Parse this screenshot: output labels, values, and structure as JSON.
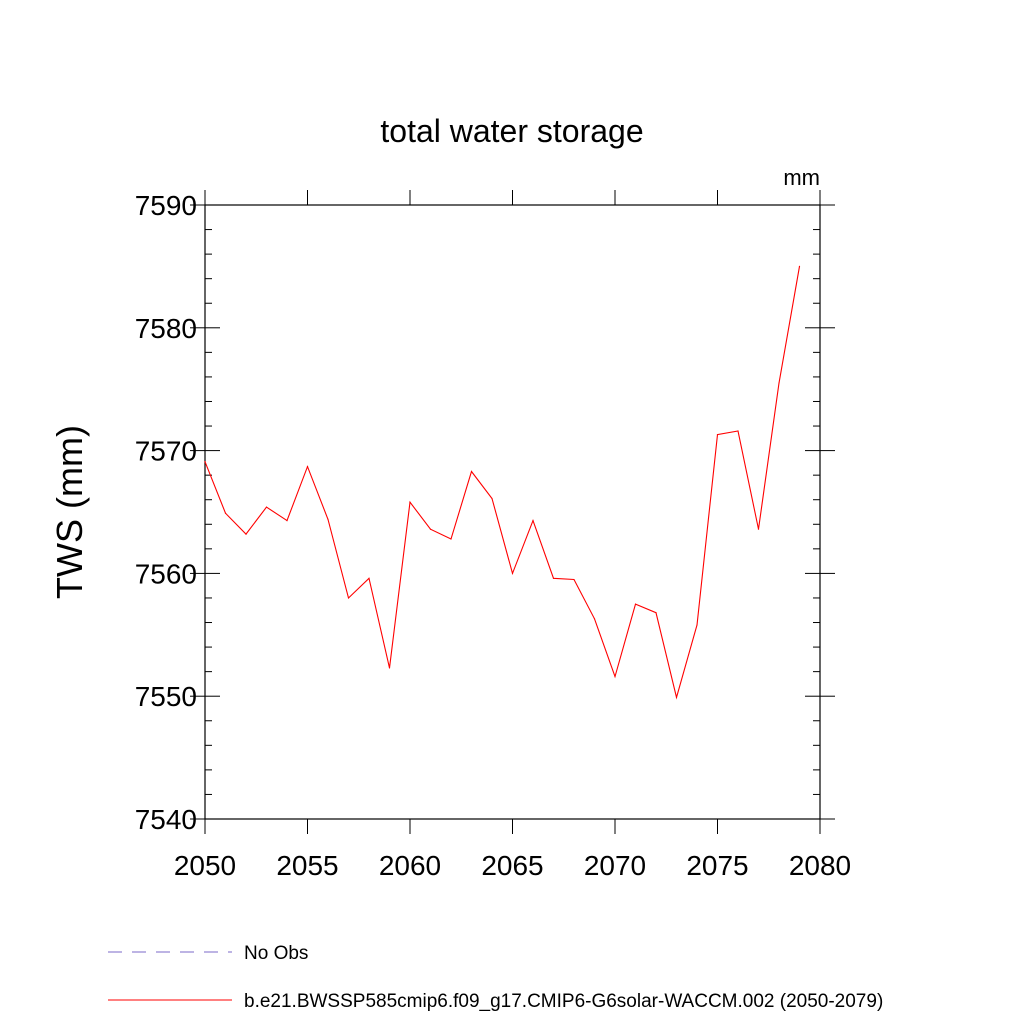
{
  "chart_data": {
    "type": "line",
    "title": "total water storage",
    "units_label": "mm",
    "xlabel": "",
    "ylabel": "TWS  (mm)",
    "xlim": [
      2050,
      2080
    ],
    "ylim": [
      7540,
      7590
    ],
    "x_ticks": [
      "2050",
      "2055",
      "2060",
      "2065",
      "2070",
      "2075",
      "2080"
    ],
    "y_ticks": [
      "7540",
      "7550",
      "7560",
      "7570",
      "7580",
      "7590"
    ],
    "grid": false,
    "series": [
      {
        "name": "b.e21.BWSSP585cmip6.f09_g17.CMIP6-G6solar-WACCM.002 (2050-2079)",
        "color": "#ff0000",
        "style": "solid",
        "x": [
          2050,
          2051,
          2052,
          2053,
          2054,
          2055,
          2056,
          2057,
          2058,
          2059,
          2060,
          2061,
          2062,
          2063,
          2064,
          2065,
          2066,
          2067,
          2068,
          2069,
          2070,
          2071,
          2072,
          2073,
          2074,
          2075,
          2076,
          2077,
          2078,
          2079
        ],
        "values": [
          7569.1,
          7564.9,
          7563.2,
          7565.4,
          7564.3,
          7568.7,
          7564.4,
          7558.0,
          7559.6,
          7552.3,
          7565.8,
          7563.6,
          7562.8,
          7568.3,
          7566.1,
          7560.0,
          7564.3,
          7559.6,
          7559.5,
          7556.3,
          7551.6,
          7557.5,
          7556.8,
          7549.9,
          7555.8,
          7571.3,
          7571.6,
          7563.6,
          7575.5,
          7585.0
        ]
      }
    ],
    "legend": [
      {
        "label": "No Obs",
        "color": "#7b68c8",
        "style": "dashed"
      },
      {
        "label": "b.e21.BWSSP585cmip6.f09_g17.CMIP6-G6solar-WACCM.002 (2050-2079)",
        "color": "#ff0000",
        "style": "solid"
      }
    ],
    "legend_position": "bottom-left"
  }
}
